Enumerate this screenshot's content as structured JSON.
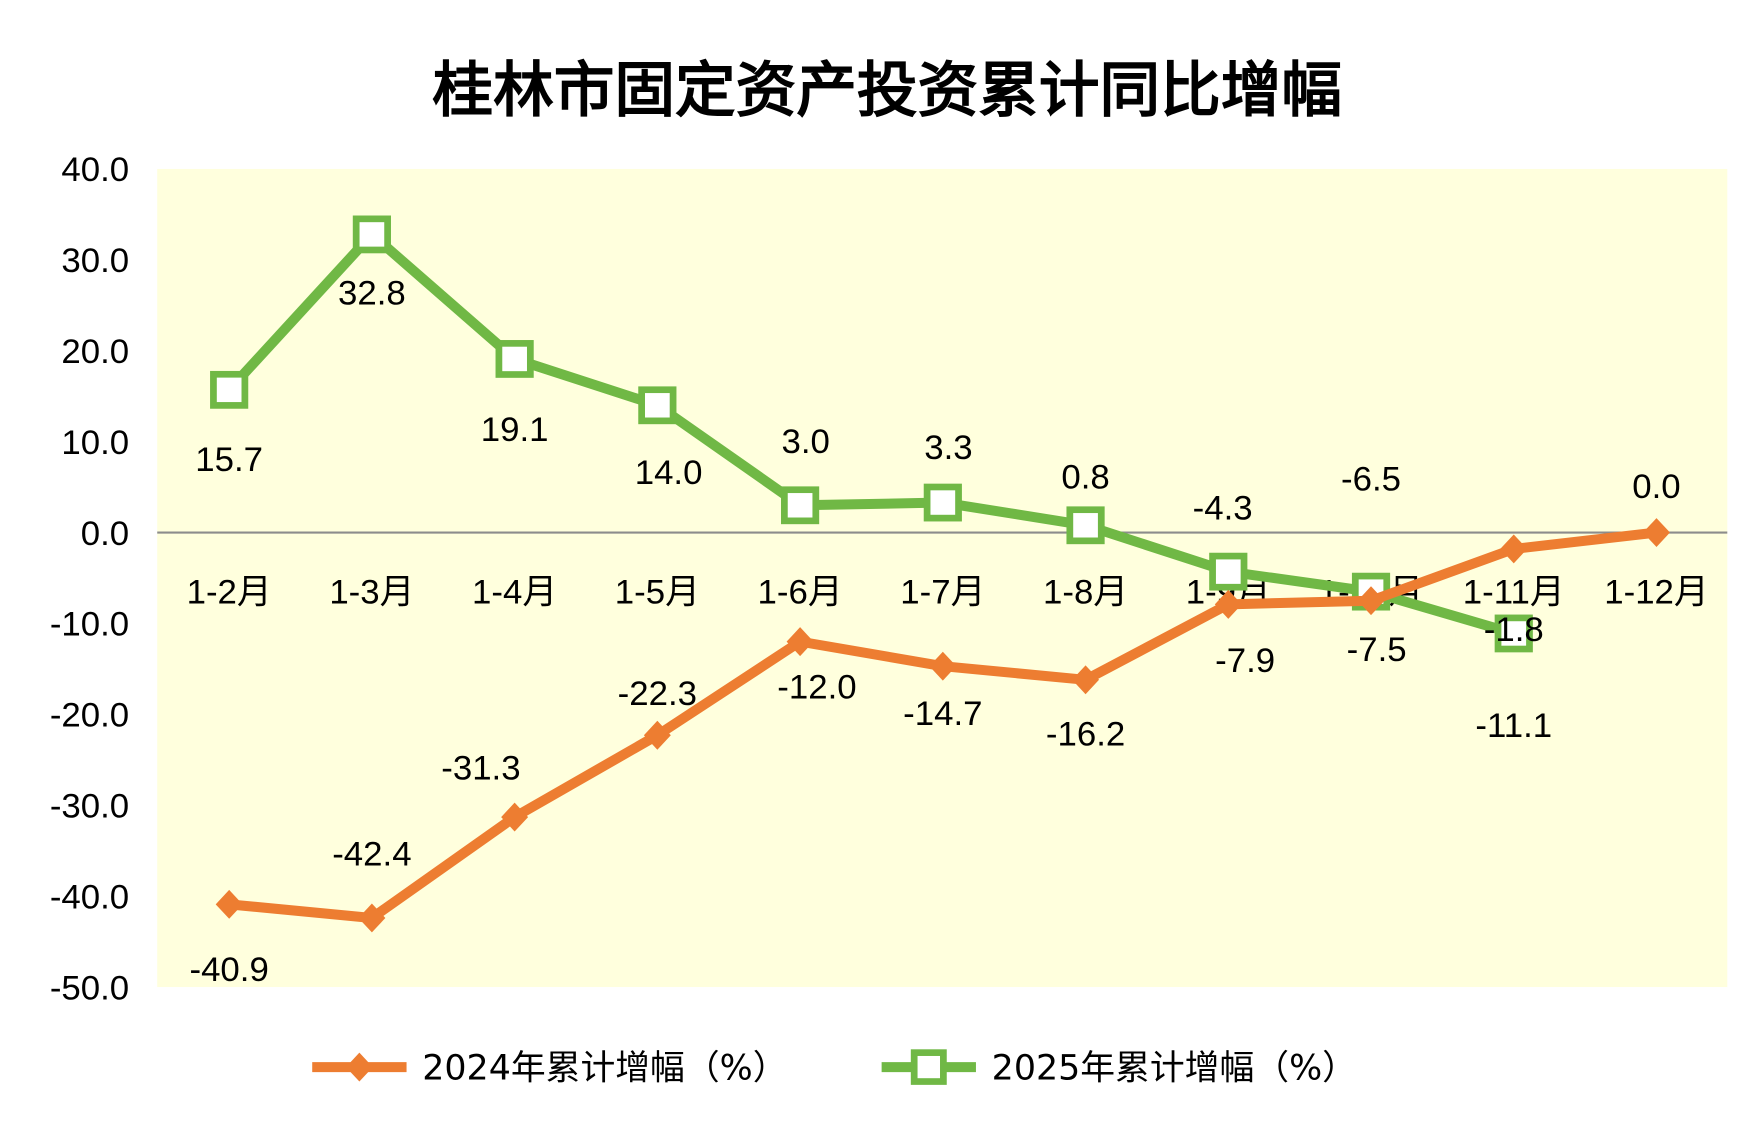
{
  "chart_data": {
    "type": "line",
    "title": "桂林市固定资产投资累计同比增幅",
    "xlabel": "",
    "ylabel": "",
    "ylim": [
      -50,
      40
    ],
    "yticks": [
      "40.0",
      "30.0",
      "20.0",
      "10.0",
      "0.0",
      "-10.0",
      "-20.0",
      "-30.0",
      "-40.0",
      "-50.0"
    ],
    "ytick_values": [
      40,
      30,
      20,
      10,
      0,
      -10,
      -20,
      -30,
      -40,
      -50
    ],
    "categories": [
      "1-2月",
      "1-3月",
      "1-4月",
      "1-5月",
      "1-6月",
      "1-7月",
      "1-8月",
      "1-9月",
      "1-10月",
      "1-11月",
      "1-12月"
    ],
    "series": [
      {
        "name": "2024年累计增幅（%）",
        "color": "#ED7D31",
        "marker": "diamond",
        "values": [
          -40.9,
          -42.4,
          -31.3,
          -22.3,
          -12.0,
          -14.7,
          -16.2,
          -7.9,
          -7.5,
          -1.8,
          0.0
        ],
        "labels": [
          "-40.9",
          "-42.4",
          "-31.3",
          "-22.3",
          "-12.0",
          "-14.7",
          "-16.2",
          "-7.9",
          "-7.5",
          "-1.8",
          "0.0"
        ]
      },
      {
        "name": "2025年累计增幅（%）",
        "color": "#70B845",
        "marker": "square",
        "values": [
          15.7,
          32.8,
          19.1,
          14.0,
          3.0,
          3.3,
          0.8,
          -4.3,
          -6.5,
          -11.1,
          null
        ],
        "labels": [
          "15.7",
          "32.8",
          "19.1",
          "14.0",
          "3.0",
          "3.3",
          "0.8",
          "-4.3",
          "-6.5",
          "-11.1",
          null
        ]
      }
    ],
    "plot_background": "#FFFFDD",
    "legend_position": "bottom",
    "grid": false
  }
}
